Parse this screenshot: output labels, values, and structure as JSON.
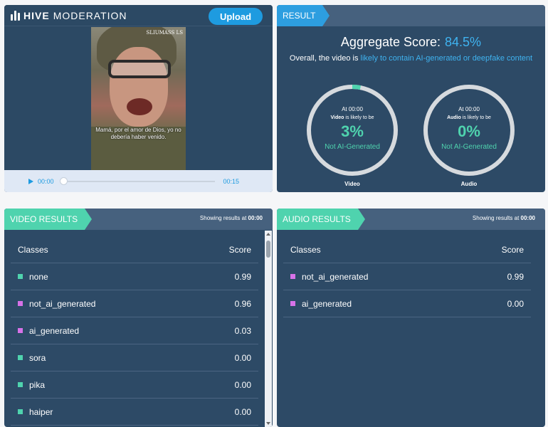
{
  "header": {
    "brand_bold": "HIVE",
    "brand_light": "MODERATION",
    "upload_label": "Upload"
  },
  "player": {
    "watermark": "SLIUMASS LS",
    "caption": "Mamá, por el amor de Dios, yo no debería haber venido.",
    "current_time": "00:00",
    "duration": "00:15",
    "progress": 0.0
  },
  "result": {
    "tag": "RESULT",
    "aggregate_label": "Aggregate Score:",
    "aggregate_value": "84.5%",
    "summary_prefix": "Overall, the video is ",
    "summary_highlight": "likely to contain AI-generated or deepfake content",
    "gauges": [
      {
        "at": "At 00:00",
        "medium": "Video",
        "likely": "is likely to be",
        "percent": "3%",
        "value": 0.03,
        "verdict": "Not AI-Generated",
        "caption": "Video"
      },
      {
        "at": "At 00:00",
        "medium": "Audio",
        "likely": "is likely to be",
        "percent": "0%",
        "value": 0.0,
        "verdict": "Not AI-Generated",
        "caption": "Audio"
      }
    ]
  },
  "video_results": {
    "tag": "VIDEO RESULTS",
    "showing_prefix": "Showing results at",
    "showing_time": "00:00",
    "columns": [
      "Classes",
      "Score"
    ],
    "rows": [
      {
        "name": "none",
        "score": "0.99",
        "color": "#4fd3ae"
      },
      {
        "name": "not_ai_generated",
        "score": "0.96",
        "color": "#d772e8"
      },
      {
        "name": "ai_generated",
        "score": "0.03",
        "color": "#d772e8"
      },
      {
        "name": "sora",
        "score": "0.00",
        "color": "#4fd3ae"
      },
      {
        "name": "pika",
        "score": "0.00",
        "color": "#4fd3ae"
      },
      {
        "name": "haiper",
        "score": "0.00",
        "color": "#4fd3ae"
      }
    ]
  },
  "audio_results": {
    "tag": "AUDIO RESULTS",
    "showing_prefix": "Showing results at",
    "showing_time": "00:00",
    "columns": [
      "Classes",
      "Score"
    ],
    "rows": [
      {
        "name": "not_ai_generated",
        "score": "0.99",
        "color": "#d772e8"
      },
      {
        "name": "ai_generated",
        "score": "0.00",
        "color": "#d772e8"
      }
    ]
  },
  "colors": {
    "panel": "#2d4a66",
    "accent_blue": "#2d9ee0",
    "accent_green": "#4fd3ae",
    "class_magenta": "#d772e8"
  }
}
